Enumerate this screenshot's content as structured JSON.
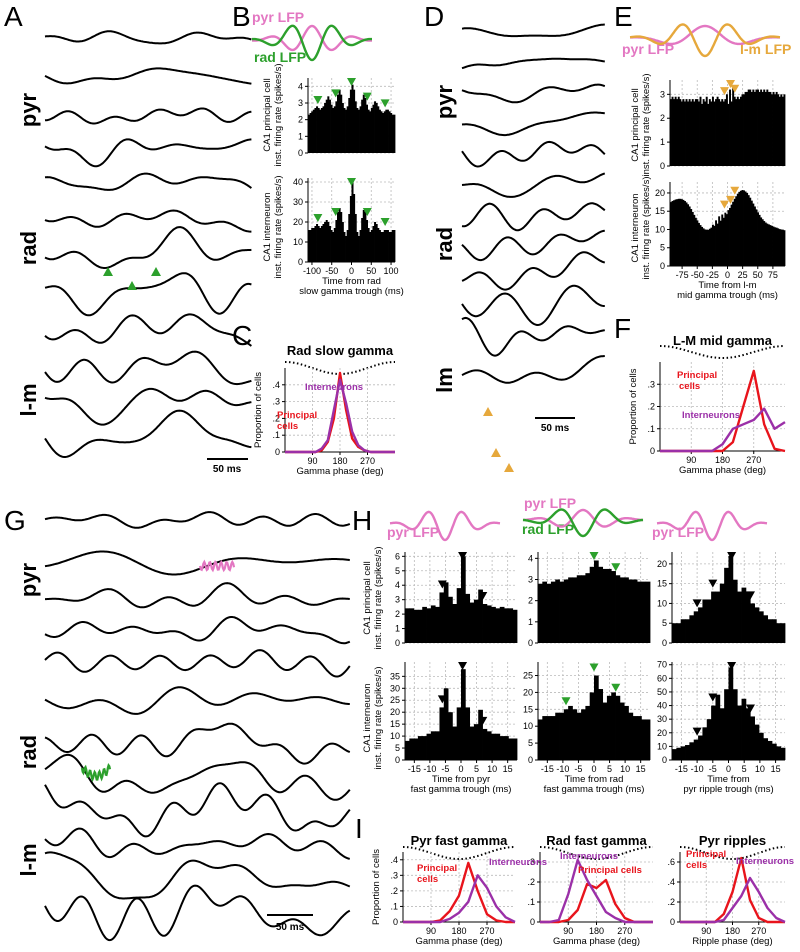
{
  "colors": {
    "pyr": "#e377c2",
    "rad": "#2ca02c",
    "lm": "#e6a83c",
    "principal": "#e8141c",
    "interneuron": "#9b30a8",
    "black": "#000000"
  },
  "panel_labels": [
    "A",
    "B",
    "C",
    "D",
    "E",
    "F",
    "G",
    "H",
    "I"
  ],
  "layers": {
    "pyr": "pyr",
    "rad": "rad",
    "lm": "l-m",
    "lm_D": "lm"
  },
  "scalebar": "50 ms",
  "lfp": {
    "pyr": "pyr LFP",
    "rad": "rad LFP",
    "lm": "l-m LFP"
  },
  "ylabels": {
    "principal": [
      "CA1 principal cell",
      "inst. firing rate (spikes/s)"
    ],
    "interneuron": [
      "CA1 interneuron",
      "inst. firing rate (spikes/s)"
    ],
    "proportion": "Proportion of cells"
  },
  "legend": {
    "principal": [
      "Principal",
      "cells"
    ],
    "principal_one": "Principal cells",
    "interneurons": "Interneurons"
  },
  "chart_data": [
    {
      "panel": "B",
      "type": "bar",
      "title": "",
      "xlabel": [
        "Time from rad",
        "slow gamma trough (ms)"
      ],
      "xlim": [
        -110,
        110
      ],
      "xticks": [
        -100,
        -50,
        0,
        50,
        100
      ],
      "series": [
        {
          "name": "CA1 principal cell",
          "ylim": [
            0,
            4.5
          ],
          "yticks": [
            0,
            1,
            2,
            3,
            4
          ],
          "values": [
            2.3,
            2.4,
            2.5,
            2.6,
            2.7,
            2.8,
            2.7,
            2.6,
            2.7,
            2.8,
            3.0,
            3.2,
            3.4,
            3.2,
            2.9,
            2.7,
            2.8,
            3.1,
            3.5,
            3.8,
            3.5,
            3.0,
            2.7,
            2.6,
            2.8,
            3.3,
            3.8,
            4.1,
            3.8,
            3.1,
            2.7,
            2.6,
            2.8,
            3.2,
            3.5,
            3.3,
            2.9,
            2.6,
            2.5,
            2.7,
            2.9,
            3.1,
            3.0,
            2.8,
            2.6,
            2.5,
            2.4,
            2.5,
            2.6,
            2.6,
            2.5,
            2.4,
            2.3,
            2.3
          ],
          "markers": [
            -85,
            -40,
            0,
            40,
            85
          ]
        },
        {
          "name": "CA1 interneuron",
          "ylim": [
            0,
            42
          ],
          "yticks": [
            0,
            10,
            20,
            30,
            40
          ],
          "values": [
            16,
            16,
            17,
            17,
            18,
            19,
            18,
            17,
            18,
            19,
            20,
            21,
            20,
            18,
            16,
            15,
            17,
            21,
            25,
            27,
            25,
            20,
            15,
            13,
            16,
            24,
            33,
            40,
            34,
            24,
            15,
            13,
            16,
            22,
            26,
            25,
            21,
            17,
            15,
            16,
            18,
            20,
            19,
            17,
            16,
            15,
            15,
            16,
            16,
            16,
            15,
            15,
            16,
            16
          ],
          "markers": [
            -85,
            -40,
            0,
            40,
            85
          ]
        }
      ]
    },
    {
      "panel": "C",
      "type": "line",
      "title": "Rad slow gamma",
      "xlabel": "Gamma phase (deg)",
      "ylabel": "Proportion of cells",
      "xlim": [
        0,
        360
      ],
      "ylim": [
        0,
        0.5
      ],
      "xticks": [
        90,
        180,
        270
      ],
      "yticks": [
        0,
        0.1,
        0.2,
        0.3,
        0.4
      ],
      "x": [
        0,
        20,
        40,
        60,
        80,
        100,
        120,
        140,
        160,
        180,
        200,
        220,
        240,
        260,
        280,
        300,
        320,
        340,
        360
      ],
      "series": [
        {
          "name": "Principal cells",
          "values": [
            0,
            0,
            0,
            0,
            0,
            0,
            0.01,
            0.06,
            0.2,
            0.47,
            0.25,
            0.08,
            0.03,
            0.01,
            0,
            0,
            0,
            0,
            0
          ]
        },
        {
          "name": "Interneurons",
          "values": [
            0,
            0,
            0,
            0,
            0,
            0,
            0.02,
            0.07,
            0.25,
            0.43,
            0.29,
            0.12,
            0.04,
            0.01,
            0,
            0,
            0,
            0,
            0
          ]
        }
      ]
    },
    {
      "panel": "E",
      "type": "bar",
      "title": "",
      "xlabel": [
        "Time from l-m",
        "mid gamma trough (ms)"
      ],
      "xlim": [
        -95,
        95
      ],
      "xticks": [
        -75,
        -50,
        -25,
        0,
        25,
        50,
        75
      ],
      "series": [
        {
          "name": "CA1 principal cell",
          "ylim": [
            0,
            3.6
          ],
          "yticks": [
            0,
            1,
            2,
            3
          ],
          "values": [
            2.8,
            2.9,
            2.8,
            2.9,
            2.8,
            2.9,
            2.8,
            2.7,
            2.8,
            2.7,
            2.8,
            2.7,
            2.8,
            2.7,
            2.8,
            2.7,
            2.8,
            2.8,
            2.7,
            2.9,
            2.6,
            2.8,
            2.7,
            2.9,
            2.6,
            2.8,
            2.7,
            2.9,
            2.7,
            2.8,
            2.9,
            2.8,
            2.7,
            2.8,
            2.7,
            2.8,
            3.0,
            2.6,
            3.2,
            2.7,
            3.3,
            2.9,
            2.8,
            2.9,
            2.8,
            2.9,
            3.0,
            3.0,
            3.1,
            3.1,
            3.2,
            3.2,
            3.1,
            3.2,
            3.1,
            3.2,
            3.2,
            3.1,
            3.2,
            3.1,
            3.2,
            3.1,
            3.2,
            3.1,
            3.1,
            3.0,
            3.1,
            3.0,
            3.1,
            3.0,
            2.9,
            3.0,
            2.9,
            3.0
          ],
          "markers": [
            -5,
            5,
            12
          ]
        },
        {
          "name": "CA1 interneuron",
          "ylim": [
            0,
            23
          ],
          "yticks": [
            0,
            5,
            10,
            15,
            20
          ],
          "values": [
            17.5,
            17.8,
            18.0,
            18.2,
            18.3,
            18.4,
            18.4,
            18.3,
            18.1,
            17.8,
            17.4,
            16.9,
            16.3,
            15.6,
            14.8,
            14.0,
            13.2,
            12.5,
            11.8,
            11.2,
            10.7,
            10.3,
            10.0,
            9.9,
            9.9,
            10.2,
            10.5,
            11.3,
            11.0,
            12.5,
            11.6,
            13.6,
            12.4,
            14.1,
            13.2,
            14.6,
            14.2,
            15.3,
            15.9,
            16.8,
            17.6,
            18.4,
            19.1,
            19.8,
            20.3,
            20.6,
            20.8,
            20.7,
            20.4,
            20.0,
            19.4,
            18.7,
            17.9,
            17.1,
            16.3,
            15.5,
            14.7,
            14.0,
            13.3,
            12.8,
            12.3,
            11.9,
            11.6,
            11.4,
            11.2,
            11.0,
            10.8,
            10.6,
            10.5,
            10.3,
            10.1,
            10.0,
            9.9,
            9.8
          ],
          "markers": [
            -5,
            5,
            12
          ]
        }
      ]
    },
    {
      "panel": "F",
      "type": "line",
      "title": "L-M mid gamma",
      "xlabel": "Gamma phase (deg)",
      "ylabel": "Proportion of cells",
      "xlim": [
        0,
        360
      ],
      "ylim": [
        0,
        0.4
      ],
      "xticks": [
        90,
        180,
        270
      ],
      "yticks": [
        0,
        0.1,
        0.2,
        0.3
      ],
      "x": [
        0,
        30,
        60,
        90,
        120,
        150,
        180,
        210,
        240,
        270,
        300,
        330,
        360
      ],
      "series": [
        {
          "name": "Principal cells",
          "values": [
            0,
            0,
            0,
            0,
            0,
            0,
            0,
            0.04,
            0.2,
            0.36,
            0.12,
            0.01,
            0
          ]
        },
        {
          "name": "Interneurons",
          "values": [
            0,
            0,
            0,
            0,
            0,
            0,
            0.03,
            0.1,
            0.12,
            0.14,
            0.19,
            0.1,
            0.13
          ]
        }
      ]
    },
    {
      "panel": "H1",
      "type": "bar",
      "xlabel": [
        "Time from pyr",
        "fast gamma trough (ms)"
      ],
      "xlim": [
        -18,
        18
      ],
      "xticks": [
        -15,
        -10,
        -5,
        0,
        5,
        10,
        15
      ],
      "series": [
        {
          "name": "CA1 principal cell",
          "ylim": [
            0,
            6.3
          ],
          "yticks": [
            0,
            1,
            2,
            3,
            4,
            5,
            6
          ],
          "values": [
            2.4,
            2.4,
            2.3,
            2.3,
            2.5,
            2.4,
            2.6,
            2.5,
            3.5,
            4.2,
            3.2,
            2.7,
            3.8,
            6.0,
            3.4,
            2.8,
            3.0,
            3.7,
            2.7,
            2.6,
            2.5,
            2.4,
            2.5,
            2.4,
            2.4,
            2.3
          ],
          "markers": [
            -6,
            0.5,
            7
          ]
        },
        {
          "name": "CA1 interneuron",
          "ylim": [
            0,
            41
          ],
          "yticks": [
            0,
            5,
            10,
            15,
            20,
            25,
            30,
            35
          ],
          "values": [
            8,
            9,
            9,
            10,
            10,
            11,
            12,
            12,
            22,
            30,
            20,
            14,
            22,
            38,
            22,
            14,
            15,
            21,
            13,
            12,
            11,
            11,
            10,
            10,
            9,
            9
          ],
          "markers": [
            -6,
            0.5,
            7
          ]
        }
      ]
    },
    {
      "panel": "H2",
      "type": "bar",
      "xlabel": [
        "Time from rad",
        "fast gamma trough (ms)"
      ],
      "xlim": [
        -18,
        18
      ],
      "xticks": [
        -15,
        -10,
        -5,
        0,
        5,
        10,
        15
      ],
      "series": [
        {
          "name": "CA1 principal cell",
          "ylim": [
            0,
            4.3
          ],
          "yticks": [
            0,
            1,
            2,
            3,
            4
          ],
          "values": [
            2.8,
            2.9,
            2.8,
            2.9,
            3.0,
            2.9,
            3.0,
            3.1,
            3.1,
            3.2,
            3.2,
            3.3,
            3.6,
            3.9,
            3.6,
            3.5,
            3.5,
            3.4,
            3.2,
            3.1,
            3.1,
            3.0,
            3.0,
            2.9,
            2.9,
            2.9
          ],
          "markers": [
            0,
            7
          ]
        },
        {
          "name": "CA1 interneuron",
          "ylim": [
            0,
            29
          ],
          "yticks": [
            0,
            5,
            10,
            15,
            20,
            25
          ],
          "values": [
            12,
            13,
            13,
            13,
            14,
            14,
            15,
            16,
            15,
            14,
            15,
            16,
            20,
            25,
            21,
            17,
            19,
            20,
            19,
            17,
            16,
            14,
            13,
            13,
            12,
            12
          ],
          "markers": [
            -9,
            0,
            7
          ]
        }
      ]
    },
    {
      "panel": "H3",
      "type": "bar",
      "xlabel": [
        "Time from",
        "pyr ripple trough (ms)"
      ],
      "xlim": [
        -18,
        18
      ],
      "xticks": [
        -15,
        -10,
        -5,
        0,
        5,
        10,
        15
      ],
      "series": [
        {
          "name": "CA1 principal cell",
          "ylim": [
            0,
            23
          ],
          "yticks": [
            0,
            5,
            10,
            15,
            20
          ],
          "values": [
            5,
            5,
            6,
            6,
            7,
            8,
            9,
            11,
            11,
            13,
            13,
            15,
            19,
            22,
            16,
            13,
            14,
            13,
            10,
            9,
            8,
            7,
            6,
            6,
            5,
            5
          ],
          "markers": [
            -10,
            -5,
            1,
            7
          ]
        },
        {
          "name": "CA1 interneuron",
          "ylim": [
            0,
            72
          ],
          "yticks": [
            0,
            10,
            20,
            30,
            40,
            50,
            60,
            70
          ],
          "values": [
            8,
            9,
            10,
            11,
            13,
            15,
            18,
            24,
            30,
            40,
            48,
            38,
            52,
            68,
            52,
            40,
            45,
            38,
            32,
            26,
            20,
            16,
            14,
            12,
            10,
            9
          ],
          "markers": [
            -10,
            -5,
            1,
            7
          ]
        }
      ]
    },
    {
      "panel": "I1",
      "type": "line",
      "title": "Pyr fast gamma",
      "xlabel": "Gamma phase (deg)",
      "ylabel": "Proportion of cells",
      "xlim": [
        0,
        360
      ],
      "ylim": [
        0,
        0.45
      ],
      "xticks": [
        90,
        180,
        270
      ],
      "yticks": [
        0,
        0.1,
        0.2,
        0.3,
        0.4
      ],
      "x": [
        0,
        30,
        60,
        90,
        120,
        150,
        180,
        210,
        240,
        270,
        300,
        330,
        360
      ],
      "series": [
        {
          "name": "Principal cells",
          "values": [
            0,
            0,
            0,
            0,
            0.01,
            0.07,
            0.17,
            0.38,
            0.2,
            0.05,
            0.01,
            0,
            0
          ]
        },
        {
          "name": "Interneurons",
          "values": [
            0,
            0,
            0,
            0,
            0,
            0.02,
            0.06,
            0.13,
            0.3,
            0.22,
            0.1,
            0.03,
            0
          ]
        }
      ]
    },
    {
      "panel": "I2",
      "type": "line",
      "title": "Rad fast gamma",
      "xlabel": "Gamma phase (deg)",
      "ylabel": "",
      "xlim": [
        0,
        360
      ],
      "ylim": [
        0,
        0.35
      ],
      "xticks": [
        90,
        180,
        270
      ],
      "yticks": [
        0,
        0.1,
        0.2,
        0.3
      ],
      "x": [
        0,
        30,
        60,
        90,
        120,
        150,
        180,
        210,
        240,
        270,
        300,
        330,
        360
      ],
      "series": [
        {
          "name": "Principal cells",
          "values": [
            0,
            0,
            0,
            0.01,
            0.06,
            0.19,
            0.17,
            0.21,
            0.09,
            0.02,
            0,
            0,
            0
          ]
        },
        {
          "name": "Interneurons",
          "values": [
            0,
            0,
            0.01,
            0.14,
            0.31,
            0.21,
            0.13,
            0.05,
            0.02,
            0,
            0,
            0,
            0
          ]
        }
      ]
    },
    {
      "panel": "I3",
      "type": "line",
      "title": "Pyr ripples",
      "xlabel": "Ripple phase (deg)",
      "ylabel": "",
      "xlim": [
        0,
        360
      ],
      "ylim": [
        0,
        0.7
      ],
      "xticks": [
        90,
        180,
        270
      ],
      "yticks": [
        0,
        0.2,
        0.4,
        0.6
      ],
      "x": [
        0,
        30,
        60,
        90,
        120,
        150,
        180,
        210,
        240,
        270,
        300,
        330,
        360
      ],
      "series": [
        {
          "name": "Principal cells",
          "values": [
            0,
            0,
            0,
            0,
            0,
            0.08,
            0.3,
            0.64,
            0.22,
            0.04,
            0,
            0,
            0
          ]
        },
        {
          "name": "Interneurons",
          "values": [
            0,
            0,
            0,
            0,
            0,
            0.02,
            0.14,
            0.26,
            0.44,
            0.3,
            0.14,
            0.04,
            0
          ]
        }
      ]
    }
  ]
}
